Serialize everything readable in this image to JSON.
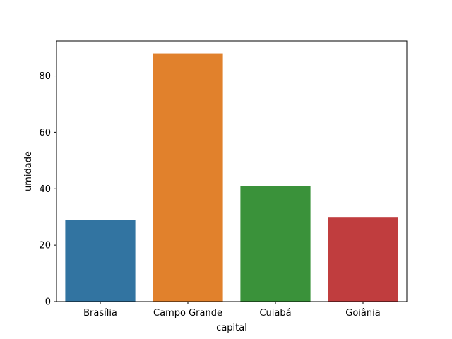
{
  "chart_data": {
    "type": "bar",
    "categories": [
      "Brasília",
      "Campo Grande",
      "Cuiabá",
      "Goiânia"
    ],
    "values": [
      29,
      88,
      41,
      30
    ],
    "colors": [
      "#3274a1",
      "#e1812c",
      "#3a923a",
      "#c03d3e"
    ],
    "xlabel": "capital",
    "ylabel": "umidade",
    "ylim": [
      0,
      92.4
    ],
    "yticks": [
      0,
      20,
      40,
      60,
      80
    ],
    "grid": false,
    "legend": false
  }
}
